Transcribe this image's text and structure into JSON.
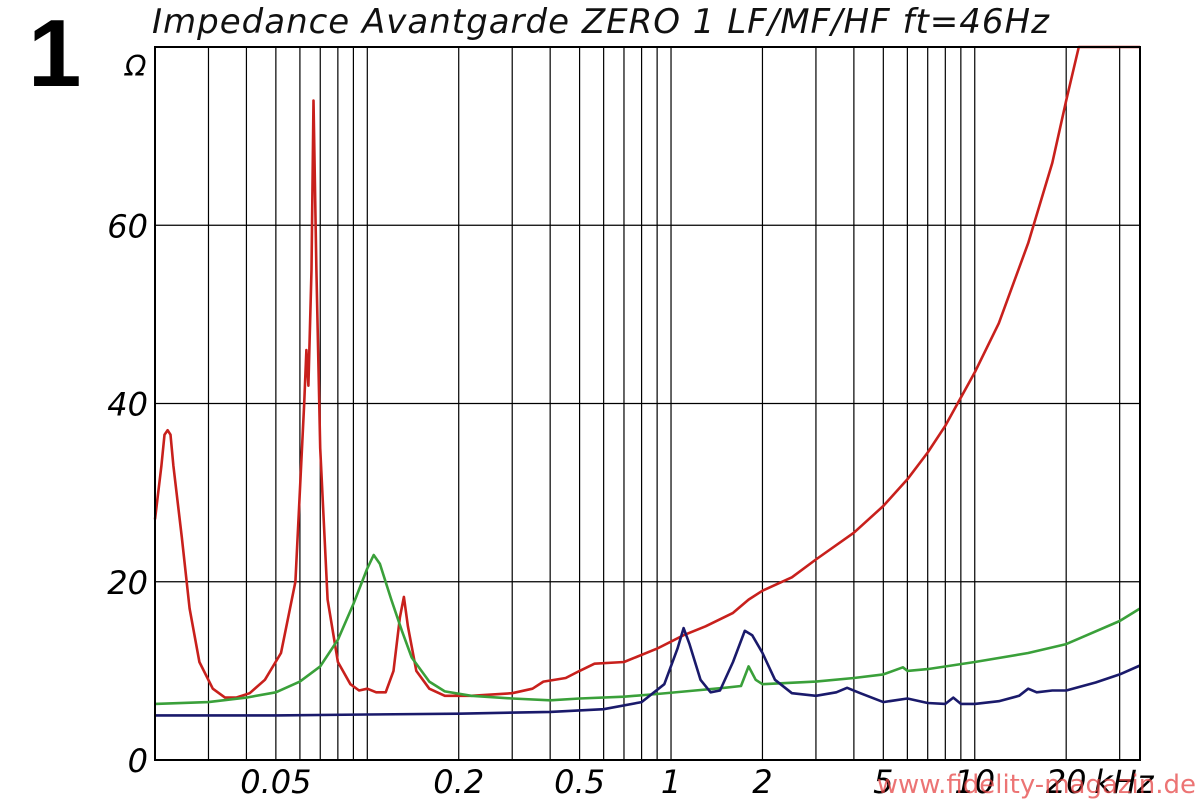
{
  "figure_number": "1",
  "watermark": "www.fidelity-magazin.de",
  "chart_data": {
    "type": "line",
    "title": "Impedance Avantgarde ZERO 1 LF/MF/HF ft=46Hz",
    "ylabel": "Ω",
    "x_unit_label": "kHz",
    "x_scale": "log",
    "xlim": [
      0.02,
      35
    ],
    "ylim": [
      0,
      80
    ],
    "grid": true,
    "y_ticks": [
      0,
      20,
      40,
      60
    ],
    "x_tick_labels": [
      {
        "value": 0.05,
        "label": "0.05"
      },
      {
        "value": 0.2,
        "label": "0.2"
      },
      {
        "value": 0.5,
        "label": "0.5"
      },
      {
        "value": 1,
        "label": "1"
      },
      {
        "value": 2,
        "label": "2"
      },
      {
        "value": 5,
        "label": "5"
      },
      {
        "value": 10,
        "label": "10"
      },
      {
        "value": 20,
        "label": "20"
      }
    ],
    "series": [
      {
        "color": "#c8201c",
        "points": [
          [
            0.02,
            27
          ],
          [
            0.021,
            33
          ],
          [
            0.0215,
            36.5
          ],
          [
            0.022,
            37
          ],
          [
            0.0225,
            36.5
          ],
          [
            0.023,
            33
          ],
          [
            0.0245,
            25
          ],
          [
            0.026,
            17
          ],
          [
            0.028,
            11
          ],
          [
            0.031,
            8
          ],
          [
            0.034,
            7
          ],
          [
            0.037,
            7
          ],
          [
            0.041,
            7.5
          ],
          [
            0.046,
            9
          ],
          [
            0.052,
            12
          ],
          [
            0.058,
            20
          ],
          [
            0.062,
            40
          ],
          [
            0.063,
            46
          ],
          [
            0.064,
            42
          ],
          [
            0.0655,
            55
          ],
          [
            0.0665,
            74
          ],
          [
            0.068,
            55
          ],
          [
            0.07,
            35
          ],
          [
            0.074,
            18
          ],
          [
            0.08,
            11
          ],
          [
            0.088,
            8.5
          ],
          [
            0.094,
            7.8
          ],
          [
            0.1,
            8
          ],
          [
            0.107,
            7.6
          ],
          [
            0.115,
            7.6
          ],
          [
            0.122,
            10
          ],
          [
            0.128,
            16
          ],
          [
            0.132,
            18.3
          ],
          [
            0.136,
            15
          ],
          [
            0.145,
            10
          ],
          [
            0.16,
            8
          ],
          [
            0.18,
            7.2
          ],
          [
            0.22,
            7.2
          ],
          [
            0.3,
            7.5
          ],
          [
            0.35,
            8
          ],
          [
            0.38,
            8.8
          ],
          [
            0.45,
            9.2
          ],
          [
            0.5,
            10
          ],
          [
            0.56,
            10.8
          ],
          [
            0.7,
            11
          ],
          [
            0.9,
            12.5
          ],
          [
            1.1,
            14
          ],
          [
            1.3,
            15
          ],
          [
            1.6,
            16.5
          ],
          [
            1.8,
            18
          ],
          [
            2.0,
            19
          ],
          [
            2.5,
            20.5
          ],
          [
            3.0,
            22.5
          ],
          [
            4.0,
            25.5
          ],
          [
            5.0,
            28.5
          ],
          [
            6.0,
            31.5
          ],
          [
            7.0,
            34.5
          ],
          [
            8.0,
            37.5
          ],
          [
            10.0,
            43.5
          ],
          [
            12.0,
            49
          ],
          [
            15.0,
            58
          ],
          [
            18.0,
            67
          ],
          [
            20.0,
            74
          ],
          [
            22.0,
            80
          ],
          [
            35.0,
            80
          ]
        ]
      },
      {
        "color": "#3aa03a",
        "points": [
          [
            0.02,
            6.3
          ],
          [
            0.03,
            6.5
          ],
          [
            0.04,
            7
          ],
          [
            0.05,
            7.6
          ],
          [
            0.06,
            8.8
          ],
          [
            0.07,
            10.5
          ],
          [
            0.08,
            13.5
          ],
          [
            0.09,
            17.5
          ],
          [
            0.1,
            21.5
          ],
          [
            0.105,
            23
          ],
          [
            0.11,
            22
          ],
          [
            0.12,
            18
          ],
          [
            0.13,
            14.5
          ],
          [
            0.14,
            11.5
          ],
          [
            0.16,
            8.8
          ],
          [
            0.18,
            7.7
          ],
          [
            0.22,
            7.2
          ],
          [
            0.3,
            6.9
          ],
          [
            0.4,
            6.7
          ],
          [
            0.5,
            6.9
          ],
          [
            0.7,
            7.1
          ],
          [
            0.9,
            7.4
          ],
          [
            1.2,
            7.8
          ],
          [
            1.5,
            8.1
          ],
          [
            1.7,
            8.3
          ],
          [
            1.8,
            10.5
          ],
          [
            1.9,
            9
          ],
          [
            2.0,
            8.5
          ],
          [
            3.0,
            8.8
          ],
          [
            4.0,
            9.2
          ],
          [
            5.0,
            9.6
          ],
          [
            5.8,
            10.4
          ],
          [
            6.0,
            10
          ],
          [
            7.0,
            10.2
          ],
          [
            10.0,
            11
          ],
          [
            15.0,
            12
          ],
          [
            20.0,
            13
          ],
          [
            30.0,
            15.6
          ],
          [
            35.0,
            17
          ]
        ]
      },
      {
        "color": "#1a1a6b",
        "points": [
          [
            0.02,
            5
          ],
          [
            0.05,
            5
          ],
          [
            0.1,
            5.1
          ],
          [
            0.2,
            5.2
          ],
          [
            0.4,
            5.4
          ],
          [
            0.6,
            5.7
          ],
          [
            0.8,
            6.5
          ],
          [
            0.95,
            8.5
          ],
          [
            1.05,
            12.5
          ],
          [
            1.1,
            14.8
          ],
          [
            1.15,
            13
          ],
          [
            1.25,
            9
          ],
          [
            1.35,
            7.6
          ],
          [
            1.45,
            7.8
          ],
          [
            1.6,
            11
          ],
          [
            1.75,
            14.5
          ],
          [
            1.85,
            14
          ],
          [
            2.0,
            12
          ],
          [
            2.2,
            9
          ],
          [
            2.5,
            7.5
          ],
          [
            3.0,
            7.2
          ],
          [
            3.5,
            7.6
          ],
          [
            3.8,
            8.1
          ],
          [
            4.2,
            7.5
          ],
          [
            5.0,
            6.5
          ],
          [
            6.0,
            6.9
          ],
          [
            7.0,
            6.4
          ],
          [
            8.0,
            6.3
          ],
          [
            8.5,
            7
          ],
          [
            9.0,
            6.3
          ],
          [
            10.0,
            6.3
          ],
          [
            12.0,
            6.6
          ],
          [
            14.0,
            7.2
          ],
          [
            15.0,
            8
          ],
          [
            16.0,
            7.6
          ],
          [
            18.0,
            7.8
          ],
          [
            20.0,
            7.8
          ],
          [
            25.0,
            8.7
          ],
          [
            30.0,
            9.6
          ],
          [
            35.0,
            10.6
          ]
        ]
      }
    ]
  }
}
